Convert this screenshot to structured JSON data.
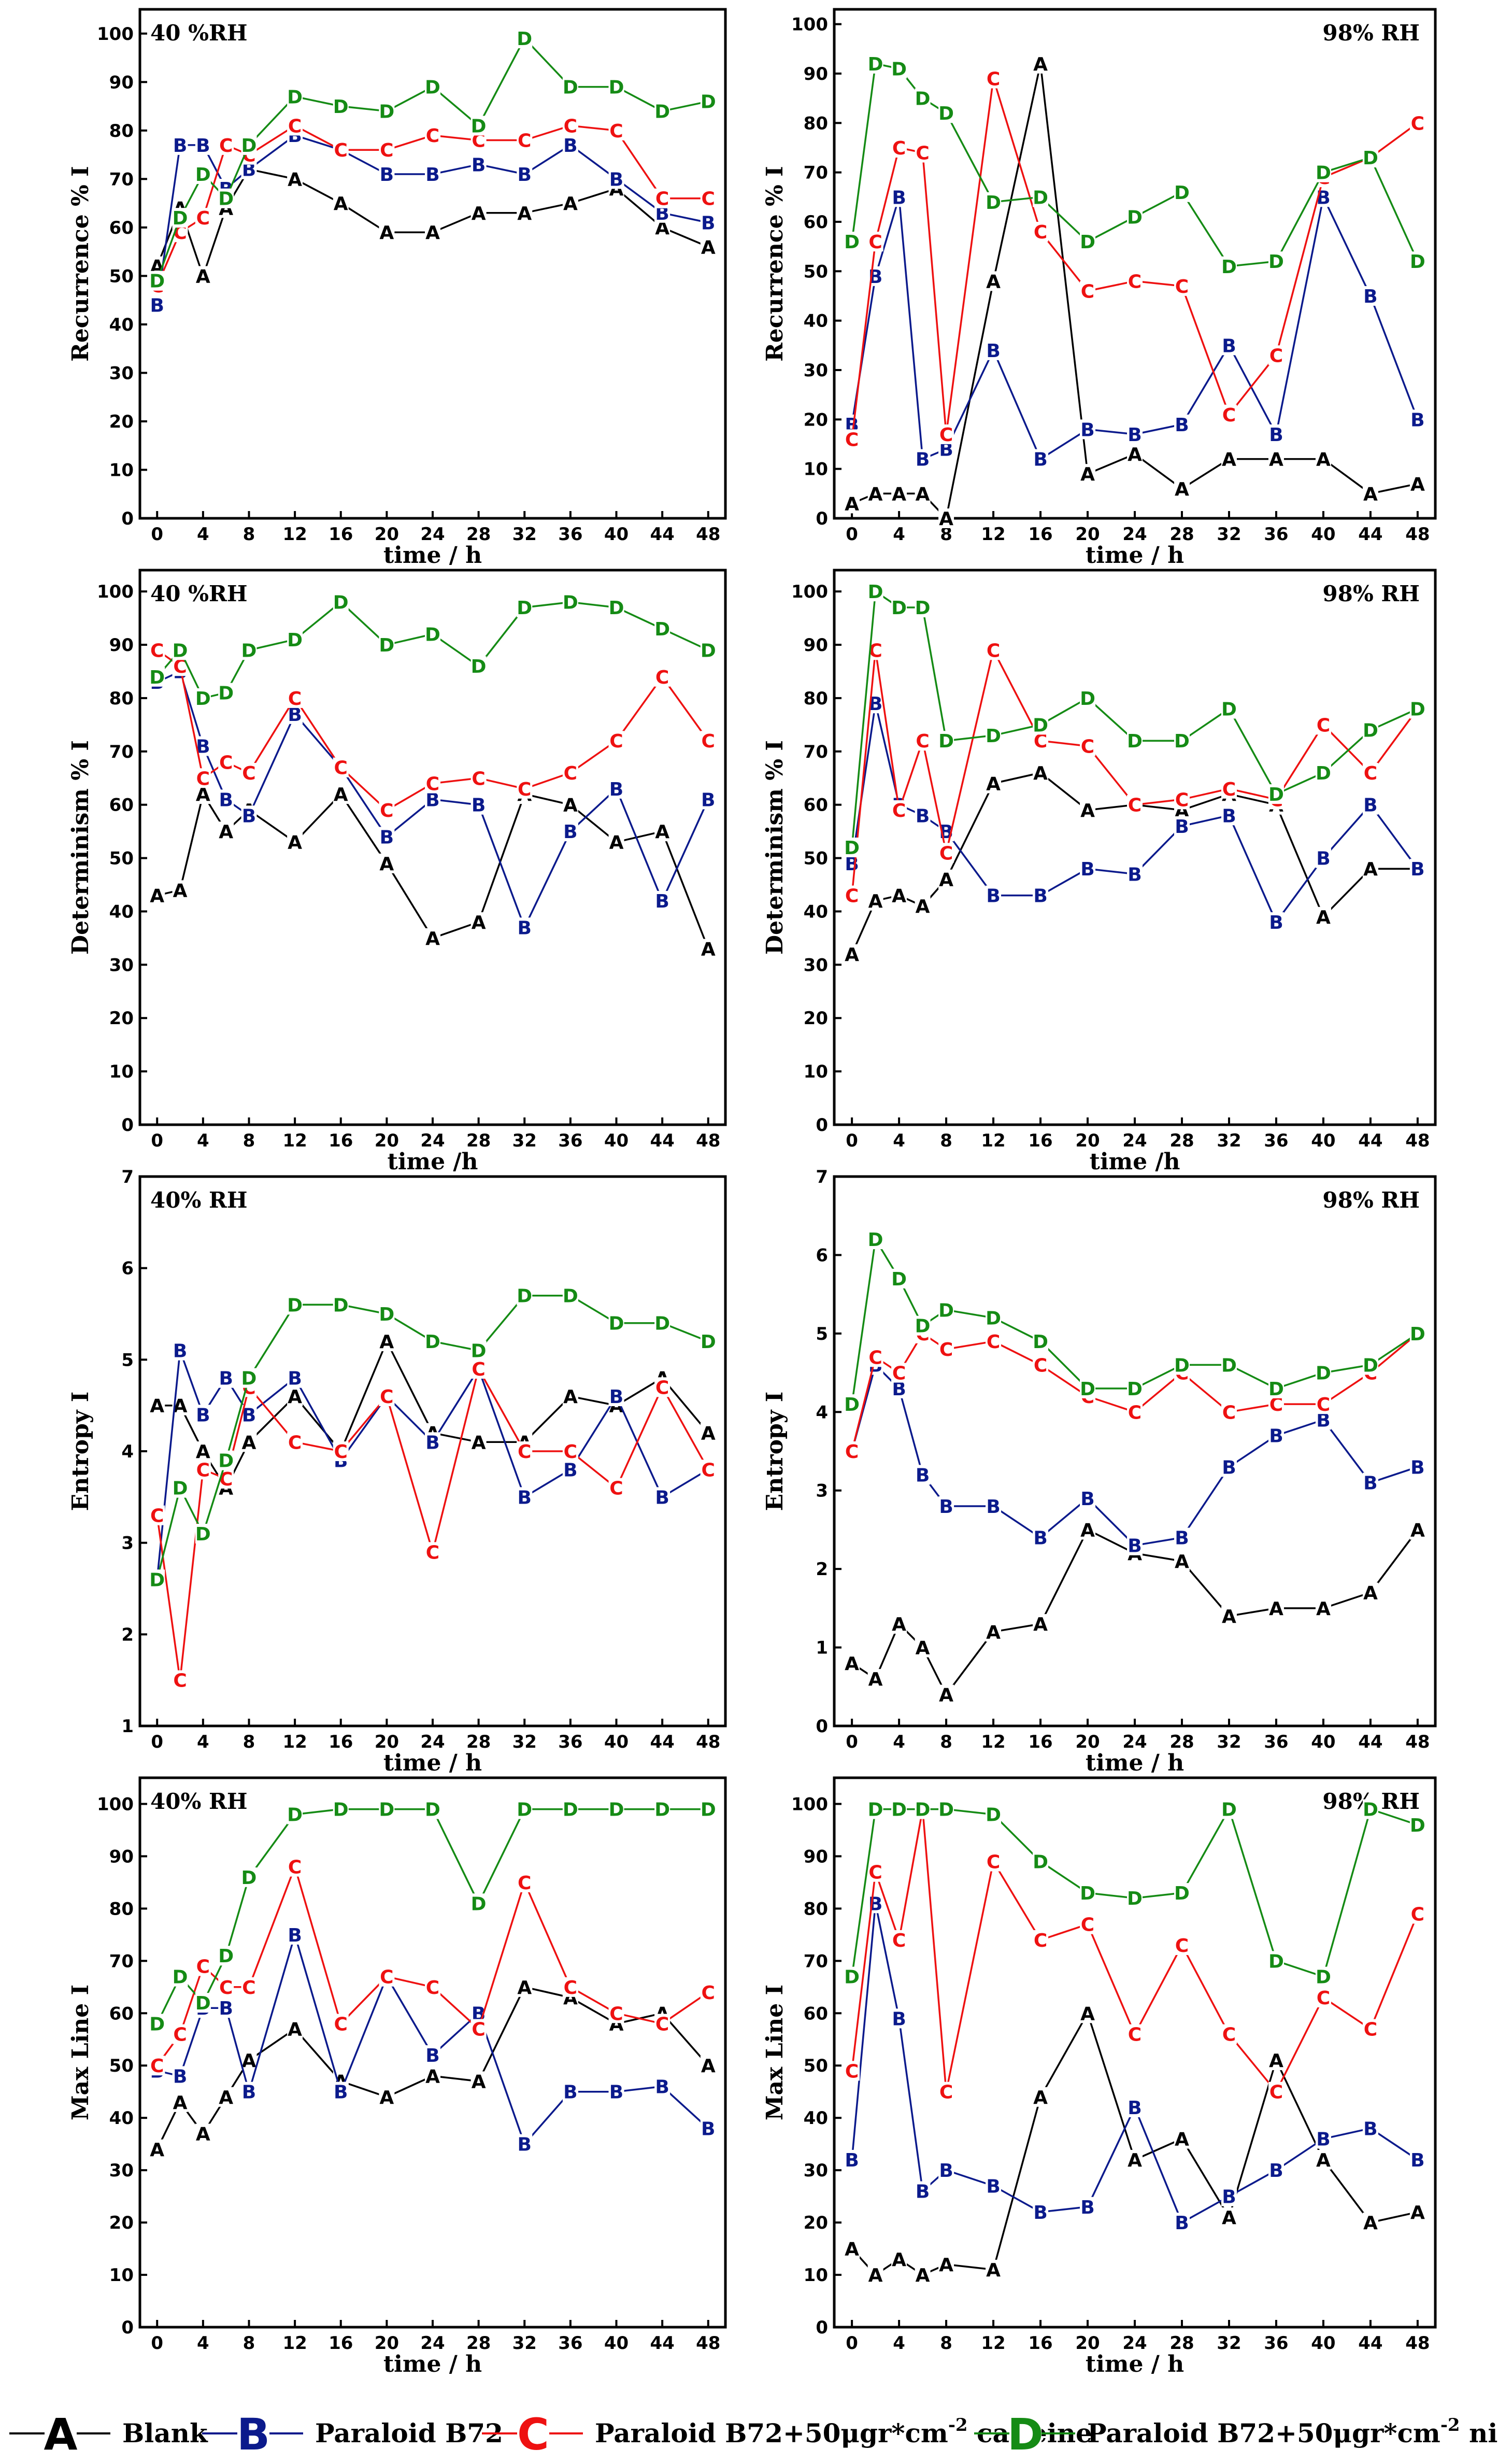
{
  "colors": {
    "A": "#000000",
    "B": "#0b1a8c",
    "C": "#ee1111",
    "D": "#158b15"
  },
  "legend": [
    {
      "marker": "A",
      "label": "Blank"
    },
    {
      "marker": "B",
      "label": "Paraloid B72"
    },
    {
      "marker": "C",
      "label_main": "Paraloid B72+50μgr*cm",
      "label_sup": "-2",
      "label_tail": " caffeine"
    },
    {
      "marker": "D",
      "label_main": "Paraloid B72+50μgr*cm",
      "label_sup": "-2",
      "label_tail": " nicotine"
    }
  ],
  "chart_data": [
    {
      "type": "line",
      "rh_label": "40 %RH",
      "xlabel": "time / h",
      "ylabel": "Recurrence % I",
      "xlim": [
        -1.5,
        49.5
      ],
      "ylim": [
        0,
        105
      ],
      "xticks": [
        0,
        4,
        8,
        12,
        16,
        20,
        24,
        28,
        32,
        36,
        40,
        44,
        48
      ],
      "yticks": [
        0,
        10,
        20,
        30,
        40,
        50,
        60,
        70,
        80,
        90,
        100
      ],
      "x": [
        0,
        2,
        4,
        6,
        8,
        12,
        16,
        20,
        24,
        28,
        32,
        36,
        40,
        44,
        48
      ],
      "series": [
        {
          "marker": "A",
          "values": [
            52,
            64,
            50,
            64,
            72,
            70,
            65,
            59,
            59,
            63,
            63,
            65,
            68,
            60,
            56
          ]
        },
        {
          "marker": "B",
          "values": [
            44,
            77,
            77,
            68,
            72,
            79,
            76,
            71,
            71,
            73,
            71,
            77,
            70,
            63,
            61
          ]
        },
        {
          "marker": "C",
          "values": [
            48,
            59,
            62,
            77,
            75,
            81,
            76,
            76,
            79,
            78,
            78,
            81,
            80,
            66,
            66
          ]
        },
        {
          "marker": "D",
          "values": [
            49,
            62,
            71,
            66,
            77,
            87,
            85,
            84,
            89,
            81,
            99,
            89,
            89,
            84,
            86
          ]
        }
      ]
    },
    {
      "type": "line",
      "rh_label": "98% RH",
      "xlabel": "time / h",
      "ylabel": "Recurrence % I",
      "xlim": [
        -1.5,
        49.5
      ],
      "ylim": [
        0,
        103
      ],
      "xticks": [
        0,
        4,
        8,
        12,
        16,
        20,
        24,
        28,
        32,
        36,
        40,
        44,
        48
      ],
      "yticks": [
        0,
        10,
        20,
        30,
        40,
        50,
        60,
        70,
        80,
        90,
        100
      ],
      "x": [
        0,
        2,
        4,
        6,
        8,
        12,
        16,
        20,
        24,
        28,
        32,
        36,
        40,
        44,
        48
      ],
      "series": [
        {
          "marker": "A",
          "values": [
            3,
            5,
            5,
            5,
            0,
            48,
            92,
            9,
            13,
            6,
            12,
            12,
            12,
            5,
            7
          ]
        },
        {
          "marker": "B",
          "values": [
            19,
            49,
            65,
            12,
            14,
            34,
            12,
            18,
            17,
            19,
            35,
            17,
            65,
            45,
            20
          ]
        },
        {
          "marker": "C",
          "values": [
            16,
            56,
            75,
            74,
            17,
            89,
            58,
            46,
            48,
            47,
            21,
            33,
            69,
            73,
            80
          ]
        },
        {
          "marker": "D",
          "values": [
            56,
            92,
            91,
            85,
            82,
            64,
            65,
            56,
            61,
            66,
            51,
            52,
            70,
            73,
            52
          ]
        }
      ]
    },
    {
      "type": "line",
      "rh_label": "40 %RH",
      "xlabel": "time /h",
      "ylabel": "Determinism % I",
      "xlim": [
        -1.5,
        49.5
      ],
      "ylim": [
        0,
        104
      ],
      "xticks": [
        0,
        4,
        8,
        12,
        16,
        20,
        24,
        28,
        32,
        36,
        40,
        44,
        48
      ],
      "yticks": [
        0,
        10,
        20,
        30,
        40,
        50,
        60,
        70,
        80,
        90,
        100
      ],
      "x": [
        0,
        2,
        4,
        6,
        8,
        12,
        16,
        20,
        24,
        28,
        32,
        36,
        40,
        44,
        48
      ],
      "series": [
        {
          "marker": "A",
          "values": [
            43,
            44,
            62,
            55,
            59,
            53,
            62,
            49,
            35,
            38,
            62,
            60,
            53,
            55,
            33
          ]
        },
        {
          "marker": "B",
          "values": [
            83,
            85,
            71,
            61,
            58,
            77,
            67,
            54,
            61,
            60,
            37,
            55,
            63,
            42,
            61
          ]
        },
        {
          "marker": "C",
          "values": [
            89,
            86,
            65,
            68,
            66,
            80,
            67,
            59,
            64,
            65,
            63,
            66,
            72,
            84,
            72
          ]
        },
        {
          "marker": "D",
          "values": [
            84,
            89,
            80,
            81,
            89,
            91,
            98,
            90,
            92,
            86,
            97,
            98,
            97,
            93,
            89
          ]
        }
      ]
    },
    {
      "type": "line",
      "rh_label": "98% RH",
      "xlabel": "time /h",
      "ylabel": "Determinism % I",
      "xlim": [
        -1.5,
        49.5
      ],
      "ylim": [
        0,
        104
      ],
      "xticks": [
        0,
        4,
        8,
        12,
        16,
        20,
        24,
        28,
        32,
        36,
        40,
        44,
        48
      ],
      "yticks": [
        0,
        10,
        20,
        30,
        40,
        50,
        60,
        70,
        80,
        90,
        100
      ],
      "x": [
        0,
        2,
        4,
        6,
        8,
        12,
        16,
        20,
        24,
        28,
        32,
        36,
        40,
        44,
        48
      ],
      "series": [
        {
          "marker": "A",
          "values": [
            32,
            42,
            43,
            41,
            46,
            64,
            66,
            59,
            60,
            59,
            62,
            60,
            39,
            48,
            48
          ]
        },
        {
          "marker": "B",
          "values": [
            49,
            79,
            60,
            58,
            55,
            43,
            43,
            48,
            47,
            56,
            58,
            38,
            50,
            60,
            48
          ]
        },
        {
          "marker": "C",
          "values": [
            43,
            89,
            59,
            72,
            51,
            89,
            72,
            71,
            60,
            61,
            63,
            61,
            75,
            66,
            78
          ]
        },
        {
          "marker": "D",
          "values": [
            52,
            100,
            97,
            97,
            72,
            73,
            75,
            80,
            72,
            72,
            78,
            62,
            66,
            74,
            78
          ]
        }
      ]
    },
    {
      "type": "line",
      "rh_label": "40% RH",
      "xlabel": "time / h",
      "ylabel": "Entropy I",
      "xlim": [
        -1.5,
        49.5
      ],
      "ylim": [
        1,
        7
      ],
      "xticks": [
        0,
        4,
        8,
        12,
        16,
        20,
        24,
        28,
        32,
        36,
        40,
        44,
        48
      ],
      "yticks": [
        1,
        2,
        3,
        4,
        5,
        6,
        7
      ],
      "x": [
        0,
        2,
        4,
        6,
        8,
        12,
        16,
        20,
        24,
        28,
        32,
        36,
        40,
        44,
        48
      ],
      "series": [
        {
          "marker": "A",
          "values": [
            4.5,
            4.5,
            4.0,
            3.6,
            4.1,
            4.6,
            4.0,
            5.2,
            4.2,
            4.1,
            4.1,
            4.6,
            4.5,
            4.8,
            4.2
          ]
        },
        {
          "marker": "B",
          "values": [
            2.6,
            5.1,
            4.4,
            4.8,
            4.4,
            4.8,
            3.9,
            4.6,
            4.1,
            4.9,
            3.5,
            3.8,
            4.6,
            3.5,
            3.8
          ]
        },
        {
          "marker": "C",
          "values": [
            3.3,
            1.5,
            3.8,
            3.7,
            4.7,
            4.1,
            4.0,
            4.6,
            2.9,
            4.9,
            4.0,
            4.0,
            3.6,
            4.7,
            3.8
          ]
        },
        {
          "marker": "D",
          "values": [
            2.6,
            3.6,
            3.1,
            3.9,
            4.8,
            5.6,
            5.6,
            5.5,
            5.2,
            5.1,
            5.7,
            5.7,
            5.4,
            5.4,
            5.2
          ]
        }
      ]
    },
    {
      "type": "line",
      "rh_label": "98% RH",
      "xlabel": "time / h",
      "ylabel": "Entropy I",
      "xlim": [
        -1.5,
        49.5
      ],
      "ylim": [
        0,
        7
      ],
      "xticks": [
        0,
        4,
        8,
        12,
        16,
        20,
        24,
        28,
        32,
        36,
        40,
        44,
        48
      ],
      "yticks": [
        0,
        1,
        2,
        3,
        4,
        5,
        6,
        7
      ],
      "x": [
        0,
        2,
        4,
        6,
        8,
        12,
        16,
        20,
        24,
        28,
        32,
        36,
        40,
        44,
        48
      ],
      "series": [
        {
          "marker": "A",
          "values": [
            0.8,
            0.6,
            1.3,
            1.0,
            0.4,
            1.2,
            1.3,
            2.5,
            2.2,
            2.1,
            1.4,
            1.5,
            1.5,
            1.7,
            2.5
          ]
        },
        {
          "marker": "B",
          "values": [
            3.5,
            4.6,
            4.3,
            3.2,
            2.8,
            2.8,
            2.4,
            2.9,
            2.3,
            2.4,
            3.3,
            3.7,
            3.9,
            3.1,
            3.3
          ]
        },
        {
          "marker": "C",
          "values": [
            3.5,
            4.7,
            4.5,
            5.0,
            4.8,
            4.9,
            4.6,
            4.2,
            4.0,
            4.5,
            4.0,
            4.1,
            4.1,
            4.5,
            5.0
          ]
        },
        {
          "marker": "D",
          "values": [
            4.1,
            6.2,
            5.7,
            5.1,
            5.3,
            5.2,
            4.9,
            4.3,
            4.3,
            4.6,
            4.6,
            4.3,
            4.5,
            4.6,
            5.0
          ]
        }
      ]
    },
    {
      "type": "line",
      "rh_label": "40% RH",
      "xlabel": "time / h",
      "ylabel": "Max Line I",
      "xlim": [
        -1.5,
        49.5
      ],
      "ylim": [
        0,
        105
      ],
      "xticks": [
        0,
        4,
        8,
        12,
        16,
        20,
        24,
        28,
        32,
        36,
        40,
        44,
        48
      ],
      "yticks": [
        0,
        10,
        20,
        30,
        40,
        50,
        60,
        70,
        80,
        90,
        100
      ],
      "x": [
        0,
        2,
        4,
        6,
        8,
        12,
        16,
        20,
        24,
        28,
        32,
        36,
        40,
        44,
        48
      ],
      "series": [
        {
          "marker": "A",
          "values": [
            34,
            43,
            37,
            44,
            51,
            57,
            47,
            44,
            48,
            47,
            65,
            63,
            58,
            60,
            50
          ]
        },
        {
          "marker": "B",
          "values": [
            49,
            48,
            61,
            61,
            45,
            75,
            45,
            67,
            52,
            60,
            35,
            45,
            45,
            46,
            38
          ]
        },
        {
          "marker": "C",
          "values": [
            50,
            56,
            69,
            65,
            65,
            88,
            58,
            67,
            65,
            57,
            85,
            65,
            60,
            58,
            64
          ]
        },
        {
          "marker": "D",
          "values": [
            58,
            67,
            62,
            71,
            86,
            98,
            99,
            99,
            99,
            81,
            99,
            99,
            99,
            99,
            99
          ]
        }
      ]
    },
    {
      "type": "line",
      "rh_label": "98% RH",
      "xlabel": "time / h",
      "ylabel": "Max Line I",
      "xlim": [
        -1.5,
        49.5
      ],
      "ylim": [
        0,
        105
      ],
      "xticks": [
        0,
        4,
        8,
        12,
        16,
        20,
        24,
        28,
        32,
        36,
        40,
        44,
        48
      ],
      "yticks": [
        0,
        10,
        20,
        30,
        40,
        50,
        60,
        70,
        80,
        90,
        100
      ],
      "x": [
        0,
        2,
        4,
        6,
        8,
        12,
        16,
        20,
        24,
        28,
        32,
        36,
        40,
        44,
        48
      ],
      "series": [
        {
          "marker": "A",
          "values": [
            15,
            10,
            13,
            10,
            12,
            11,
            44,
            60,
            32,
            36,
            21,
            51,
            32,
            20,
            22
          ]
        },
        {
          "marker": "B",
          "values": [
            32,
            81,
            59,
            26,
            30,
            27,
            22,
            23,
            42,
            20,
            25,
            30,
            36,
            38,
            32
          ]
        },
        {
          "marker": "C",
          "values": [
            49,
            87,
            74,
            99,
            45,
            89,
            74,
            77,
            56,
            73,
            56,
            45,
            63,
            57,
            79
          ]
        },
        {
          "marker": "D",
          "values": [
            67,
            99,
            99,
            99,
            99,
            98,
            89,
            83,
            82,
            83,
            99,
            70,
            67,
            99,
            96
          ]
        }
      ]
    }
  ]
}
